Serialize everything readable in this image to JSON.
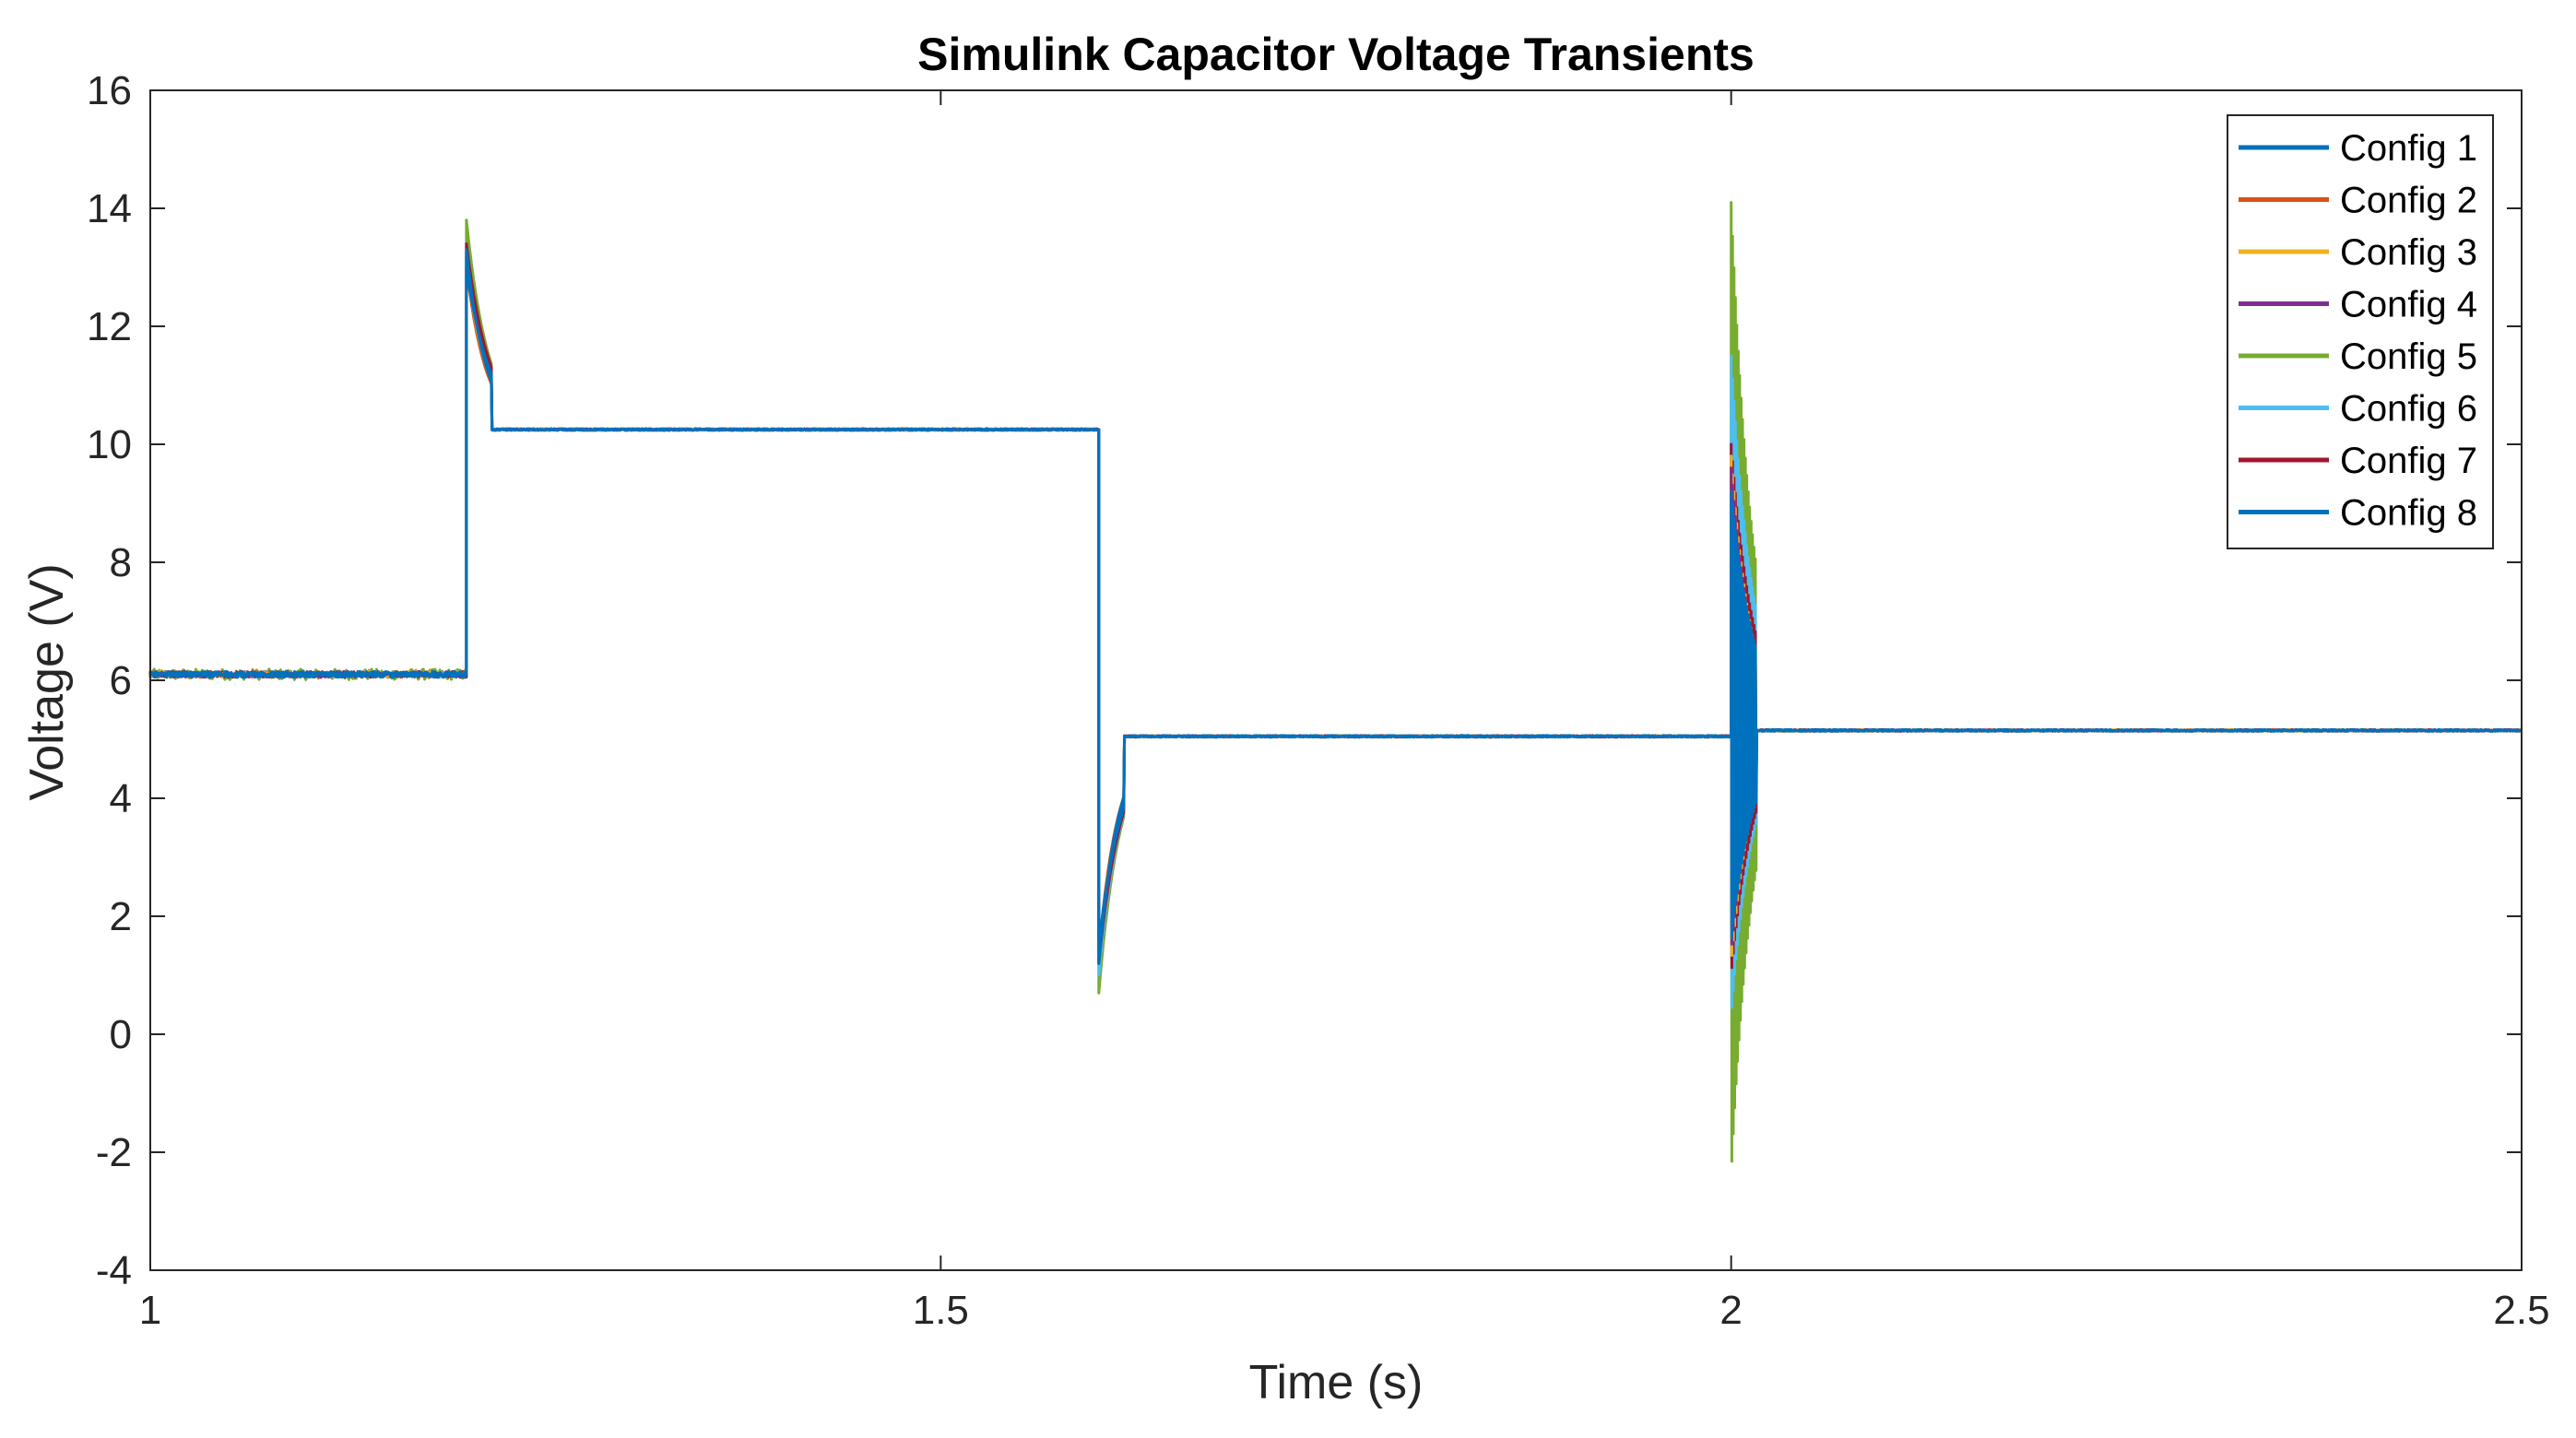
{
  "chart_data": {
    "type": "line",
    "title": "Simulink Capacitor Voltage Transients",
    "xlabel": "Time (s)",
    "ylabel": "Voltage (V)",
    "xlim": [
      1,
      2.5
    ],
    "ylim": [
      -4,
      16
    ],
    "xticks": [
      1,
      1.5,
      2,
      2.5
    ],
    "xtick_labels": [
      "1",
      "1.5",
      "2",
      "2.5"
    ],
    "yticks": [
      -4,
      -2,
      0,
      2,
      4,
      6,
      8,
      10,
      12,
      14,
      16
    ],
    "ytick_labels": [
      "-4",
      "-2",
      "0",
      "2",
      "4",
      "6",
      "8",
      "10",
      "12",
      "14",
      "16"
    ],
    "grid": false,
    "box": true,
    "legend_position": "top-right",
    "segments": [
      {
        "t_start": 1.0,
        "t_end": 1.2,
        "settled_voltage": 6.1
      },
      {
        "t_start": 1.2,
        "t_end": 1.6,
        "settled_voltage": 10.25
      },
      {
        "t_start": 1.6,
        "t_end": 2.0,
        "settled_voltage": 5.05
      },
      {
        "t_start": 2.0,
        "t_end": 2.5,
        "settled_voltage": 5.15
      }
    ],
    "series": [
      {
        "name": "Config 1",
        "color": "#0072BD",
        "transient_peaks": [
          {
            "t": 1.2,
            "v": 13.3
          },
          {
            "t": 1.6,
            "v": 1.2
          },
          {
            "t": 2.0,
            "v": 9.0
          },
          {
            "t": 2.0,
            "v": 1.5
          }
        ]
      },
      {
        "name": "Config 2",
        "color": "#D95319",
        "transient_peaks": [
          {
            "t": 1.2,
            "v": 13.0
          },
          {
            "t": 1.6,
            "v": 1.4
          },
          {
            "t": 2.0,
            "v": 9.5
          },
          {
            "t": 2.0,
            "v": 1.3
          }
        ]
      },
      {
        "name": "Config 3",
        "color": "#EDB120",
        "transient_peaks": [
          {
            "t": 1.2,
            "v": 13.1
          },
          {
            "t": 1.6,
            "v": 1.3
          },
          {
            "t": 2.0,
            "v": 9.8
          },
          {
            "t": 2.0,
            "v": 1.2
          }
        ]
      },
      {
        "name": "Config 4",
        "color": "#7E2F8E",
        "transient_peaks": [
          {
            "t": 1.2,
            "v": 13.2
          },
          {
            "t": 1.6,
            "v": 1.2
          },
          {
            "t": 2.0,
            "v": 9.6
          },
          {
            "t": 2.0,
            "v": 1.4
          }
        ]
      },
      {
        "name": "Config 5",
        "color": "#77AC30",
        "transient_peaks": [
          {
            "t": 1.2,
            "v": 13.8
          },
          {
            "t": 1.6,
            "v": 0.7
          },
          {
            "t": 2.0,
            "v": 14.1
          },
          {
            "t": 2.0,
            "v": -2.4
          }
        ]
      },
      {
        "name": "Config 6",
        "color": "#4DBEEE",
        "transient_peaks": [
          {
            "t": 1.2,
            "v": 13.4
          },
          {
            "t": 1.6,
            "v": 1.0
          },
          {
            "t": 2.0,
            "v": 11.5
          },
          {
            "t": 2.0,
            "v": 0.3
          }
        ]
      },
      {
        "name": "Config 7",
        "color": "#A2142F",
        "transient_peaks": [
          {
            "t": 1.2,
            "v": 13.4
          },
          {
            "t": 1.6,
            "v": 1.2
          },
          {
            "t": 2.0,
            "v": 10.0
          },
          {
            "t": 2.0,
            "v": 1.0
          }
        ]
      },
      {
        "name": "Config 8",
        "color": "#0072BD",
        "transient_peaks": [
          {
            "t": 1.2,
            "v": 13.0
          },
          {
            "t": 1.6,
            "v": 1.5
          },
          {
            "t": 2.0,
            "v": 9.2
          },
          {
            "t": 2.0,
            "v": 1.6
          }
        ]
      }
    ]
  }
}
